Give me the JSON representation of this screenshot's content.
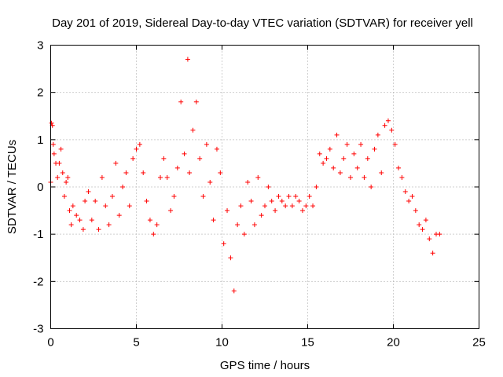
{
  "colors": {
    "series": "#ff0000",
    "axes": "#000000",
    "grid": "#a0a0a0",
    "background": "#ffffff"
  },
  "chart_data": {
    "type": "scatter",
    "title": "Day 201 of 2019, Sidereal Day-to-day VTEC variation (SDTVAR) for receiver yell",
    "xlabel": "GPS time / hours",
    "ylabel": "SDTVAR / TECUs",
    "xlim": [
      0,
      25
    ],
    "ylim": [
      -3,
      3
    ],
    "xticks": [
      0,
      5,
      10,
      15,
      20,
      25
    ],
    "yticks": [
      -3,
      -2,
      -1,
      0,
      1,
      2,
      3
    ],
    "grid": true,
    "marker": "plus",
    "series": [
      {
        "name": "SDTVAR",
        "x": [
          0.0,
          0.05,
          0.1,
          0.15,
          0.2,
          0.3,
          0.4,
          0.5,
          0.6,
          0.7,
          0.8,
          0.9,
          1.0,
          1.1,
          1.2,
          1.3,
          1.5,
          1.7,
          1.9,
          2.0,
          2.2,
          2.4,
          2.6,
          2.8,
          3.0,
          3.2,
          3.4,
          3.6,
          3.8,
          4.0,
          4.2,
          4.4,
          4.6,
          4.8,
          5.0,
          5.2,
          5.4,
          5.6,
          5.8,
          6.0,
          6.2,
          6.4,
          6.6,
          6.8,
          7.0,
          7.2,
          7.4,
          7.6,
          7.8,
          8.0,
          8.1,
          8.3,
          8.5,
          8.7,
          8.9,
          9.1,
          9.3,
          9.5,
          9.7,
          9.9,
          10.1,
          10.3,
          10.5,
          10.7,
          10.9,
          11.1,
          11.3,
          11.5,
          11.7,
          11.9,
          12.1,
          12.3,
          12.5,
          12.7,
          12.9,
          13.1,
          13.3,
          13.5,
          13.7,
          13.9,
          14.1,
          14.3,
          14.5,
          14.7,
          14.9,
          15.1,
          15.3,
          15.5,
          15.7,
          15.9,
          16.1,
          16.3,
          16.5,
          16.7,
          16.9,
          17.1,
          17.3,
          17.5,
          17.7,
          17.9,
          18.1,
          18.3,
          18.5,
          18.7,
          18.9,
          19.1,
          19.3,
          19.5,
          19.7,
          19.9,
          20.1,
          20.3,
          20.5,
          20.7,
          20.9,
          21.1,
          21.3,
          21.5,
          21.7,
          21.9,
          22.1,
          22.3,
          22.5,
          22.7
        ],
        "y": [
          0.1,
          1.35,
          1.3,
          0.9,
          0.7,
          0.5,
          0.2,
          0.5,
          0.8,
          0.3,
          -0.2,
          0.1,
          0.2,
          -0.5,
          -0.8,
          -0.4,
          -0.6,
          -0.7,
          -0.9,
          -0.3,
          -0.1,
          -0.7,
          -0.3,
          -0.9,
          0.2,
          -0.4,
          -0.8,
          -0.2,
          0.5,
          -0.6,
          0.0,
          0.3,
          -0.4,
          0.6,
          0.8,
          0.9,
          0.3,
          -0.3,
          -0.7,
          -1.0,
          -0.8,
          0.2,
          0.6,
          0.2,
          -0.5,
          -0.2,
          0.4,
          1.8,
          0.7,
          2.7,
          0.3,
          1.2,
          1.8,
          0.6,
          -0.2,
          0.9,
          0.1,
          -0.7,
          0.8,
          0.3,
          -1.2,
          -0.5,
          -1.5,
          -2.2,
          -0.8,
          -0.4,
          -1.0,
          0.1,
          -0.3,
          -0.8,
          0.2,
          -0.6,
          -0.4,
          0.0,
          -0.3,
          -0.5,
          -0.2,
          -0.3,
          -0.4,
          -0.2,
          -0.4,
          -0.2,
          -0.3,
          -0.5,
          -0.4,
          -0.2,
          -0.4,
          0.0,
          0.7,
          0.5,
          0.6,
          0.8,
          0.4,
          1.1,
          0.3,
          0.6,
          0.9,
          0.2,
          0.7,
          0.4,
          0.9,
          0.2,
          0.6,
          0.0,
          0.8,
          1.1,
          0.3,
          1.3,
          1.4,
          1.2,
          0.9,
          0.4,
          0.2,
          -0.1,
          -0.3,
          -0.2,
          -0.5,
          -0.8,
          -0.9,
          -0.7,
          -1.1,
          -1.4,
          -1.0,
          -1.0
        ]
      }
    ]
  }
}
